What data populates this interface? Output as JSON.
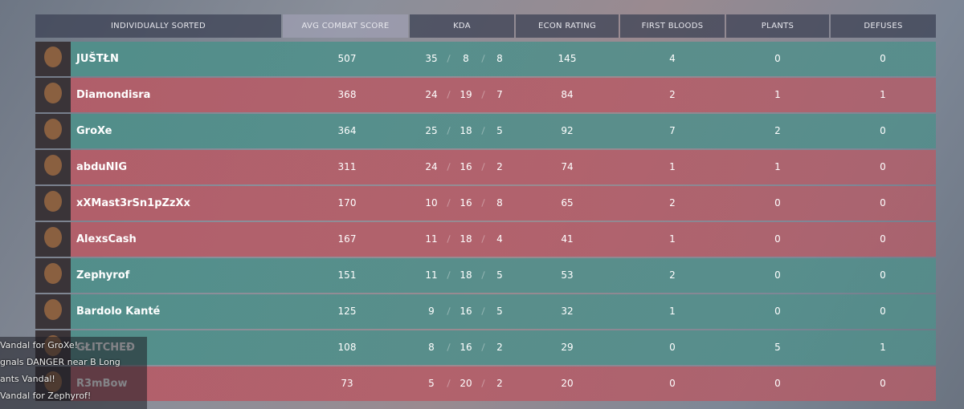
{
  "header": {
    "columns": [
      "INDIVIDUALLY SORTED",
      "AVG COMBAT SCORE",
      "KDA",
      "ECON RATING",
      "FIRST BLOODS",
      "PLANTS",
      "DEFUSES"
    ]
  },
  "rows": [
    {
      "name": "JUŠTŁN",
      "acs": 507,
      "kills": 35,
      "deaths": 8,
      "assists": 8,
      "econ": 145,
      "first_bloods": 4,
      "plants": 0,
      "defuses": 0,
      "color": "#4f8f8a"
    },
    {
      "name": "Diamondisra",
      "acs": 368,
      "kills": 24,
      "deaths": 19,
      "assists": 7,
      "econ": 84,
      "first_bloods": 2,
      "plants": 1,
      "defuses": 1,
      "color": "#b55c67"
    },
    {
      "name": "GroXe",
      "acs": 364,
      "kills": 25,
      "deaths": 18,
      "assists": 5,
      "econ": 92,
      "first_bloods": 7,
      "plants": 2,
      "defuses": 0,
      "color": "#4f8f8a"
    },
    {
      "name": "abduNIG",
      "acs": 311,
      "kills": 24,
      "deaths": 16,
      "assists": 2,
      "econ": 74,
      "first_bloods": 1,
      "plants": 1,
      "defuses": 0,
      "color": "#b55c67"
    },
    {
      "name": "xXMast3rSn1pZzXx",
      "acs": 170,
      "kills": 10,
      "deaths": 16,
      "assists": 8,
      "econ": 65,
      "first_bloods": 2,
      "plants": 0,
      "defuses": 0,
      "color": "#b55c67"
    },
    {
      "name": "AlexsCash",
      "acs": 167,
      "kills": 11,
      "deaths": 18,
      "assists": 4,
      "econ": 41,
      "first_bloods": 1,
      "plants": 0,
      "defuses": 0,
      "color": "#b55c67"
    },
    {
      "name": "Zephyrof",
      "acs": 151,
      "kills": 11,
      "deaths": 18,
      "assists": 5,
      "econ": 53,
      "first_bloods": 2,
      "plants": 0,
      "defuses": 0,
      "color": "#4f8f8a"
    },
    {
      "name": "Bardolo Kanté",
      "acs": 125,
      "kills": 9,
      "deaths": 16,
      "assists": 5,
      "econ": 32,
      "first_bloods": 1,
      "plants": 0,
      "defuses": 0,
      "color": "#4f8f8a"
    },
    {
      "name": "GŁITCHEÐ",
      "acs": 108,
      "kills": 8,
      "deaths": 16,
      "assists": 2,
      "econ": 29,
      "first_bloods": 0,
      "plants": 5,
      "defuses": 1,
      "color": "#4f8f8a"
    },
    {
      "name": "R3mBow",
      "acs": 73,
      "kills": 5,
      "deaths": 20,
      "assists": 2,
      "econ": 20,
      "first_bloods": 0,
      "plants": 0,
      "defuses": 0,
      "color": "#b55c67"
    }
  ],
  "chat": [
    "Vandal for GroXe!",
    "gnals DANGER near B Long",
    "ants Vandal!",
    "Vandal for Zephyrof!"
  ]
}
